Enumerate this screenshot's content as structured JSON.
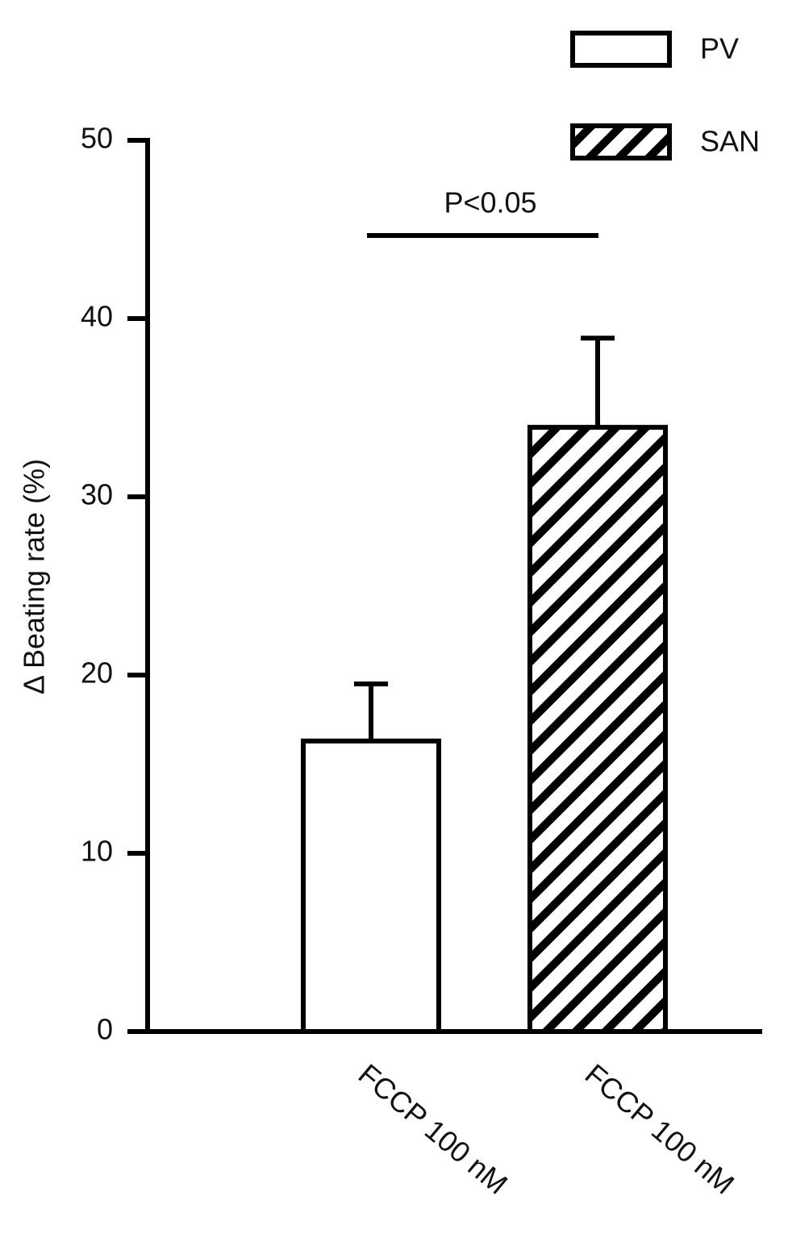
{
  "chart_data": {
    "type": "bar",
    "y_label": "Δ Beating rate (%)",
    "categories": [
      "FCCP 100 nM",
      "FCCP 100 nM"
    ],
    "series": [
      {
        "name": "PV",
        "color": "#ffffff",
        "hatch": false,
        "values": [
          16.3,
          null
        ],
        "errors": [
          3.2,
          null
        ]
      },
      {
        "name": "SAN",
        "color": "#ffffff",
        "hatch": true,
        "values": [
          null,
          33.9
        ],
        "errors": [
          null,
          5.0
        ]
      }
    ],
    "annotation": "P<0.05",
    "ylim": [
      0,
      50
    ],
    "yticks": [
      0,
      10,
      20,
      30,
      40,
      50
    ],
    "grid": false,
    "legend": "upper right"
  }
}
